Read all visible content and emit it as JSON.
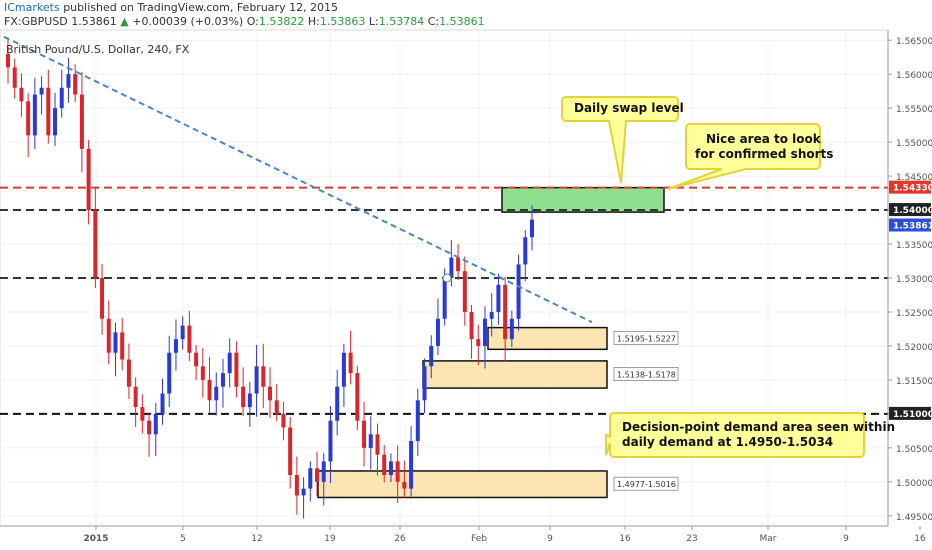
{
  "header": {
    "publisher": "ICmarkets",
    "published_text": " published on TradingView.com, February 12, 2015",
    "symbol": "FX:GBPUSD",
    "last": "1.53861",
    "change": "+0.00039 (+0.03%)",
    "open_label": "O:",
    "open": "1.53822",
    "high_label": "H:",
    "high": "1.53863",
    "low_label": "L:",
    "low": "1.53784",
    "close_label": "C:",
    "close": "1.53861",
    "up_arrow": "▲"
  },
  "chart_data": {
    "type": "candlestick",
    "title": "British Pound/U.S. Dollar, 240, FX",
    "ylim": [
      1.4935,
      1.5665
    ],
    "y_ticks": [
      "1.56500",
      "1.56000",
      "1.55500",
      "1.55000",
      "1.54500",
      "1.54000",
      "1.53500",
      "1.53000",
      "1.52500",
      "1.52000",
      "1.51500",
      "1.51000",
      "1.50500",
      "1.50000",
      "1.49500"
    ],
    "x_ticks": [
      "2015",
      "5",
      "12",
      "19",
      "26",
      "Feb",
      "9",
      "16",
      "23",
      "Mar",
      "9",
      "16"
    ],
    "price_labels": [
      {
        "text": "1.54330",
        "value": 1.5433,
        "color": "#e0392b"
      },
      {
        "text": "1.54000",
        "value": 1.54,
        "color": "#222222"
      },
      {
        "text": "1.53861",
        "value": 1.53861,
        "color": "#2b4fd8"
      },
      {
        "text": "1.51000",
        "value": 1.51,
        "color": "#222222"
      }
    ],
    "horizontal_levels": [
      {
        "value": 1.5433,
        "color": "#e0392b",
        "style": "dashed"
      },
      {
        "value": 1.54,
        "color": "#333333",
        "style": "dashed"
      },
      {
        "value": 1.53,
        "color": "#333333",
        "style": "dashed"
      },
      {
        "value": 1.51,
        "color": "#111111",
        "style": "dashed"
      }
    ],
    "zones": [
      {
        "label": "1.5195-1.5227",
        "low": 1.5195,
        "high": 1.5227,
        "color": "#fbe6b3"
      },
      {
        "label": "1.5138-1.5178",
        "low": 1.5138,
        "high": 1.5178,
        "color": "#fbe6b3"
      },
      {
        "label": "1.4977-1.5016",
        "low": 1.4977,
        "high": 1.5016,
        "color": "#fbe6b3"
      },
      {
        "label": "",
        "low": 1.5397,
        "high": 1.5433,
        "color": "#8ee08e"
      }
    ],
    "trendline": {
      "from": [
        1.5655
      ],
      "to": [
        1.5235
      ],
      "color": "#4a86c8"
    },
    "callouts": [
      {
        "text": "Daily swap level"
      },
      {
        "text": "Nice area to look\nfor confirmed shorts"
      },
      {
        "text": "Decision-point demand area seen within\ndaily demand at 1.4950-1.5034"
      }
    ],
    "candle_path": [
      1.561,
      1.558,
      1.556,
      1.551,
      1.557,
      1.558,
      1.551,
      1.555,
      1.558,
      1.56,
      1.557,
      1.549,
      1.54,
      1.53,
      1.524,
      1.519,
      1.522,
      1.518,
      1.514,
      1.511,
      1.509,
      1.507,
      1.51,
      1.513,
      1.519,
      1.521,
      1.523,
      1.519,
      1.517,
      1.515,
      1.512,
      1.514,
      1.516,
      1.519,
      1.514,
      1.511,
      1.513,
      1.517,
      1.514,
      1.512,
      1.51,
      1.508,
      1.501,
      1.498,
      1.499,
      1.502,
      1.5,
      1.503,
      1.509,
      1.514,
      1.519,
      1.516,
      1.509,
      1.505,
      1.507,
      1.504,
      1.501,
      1.503,
      1.5,
      1.499,
      1.506,
      1.512,
      1.517,
      1.52,
      1.524,
      1.53,
      1.533,
      1.531,
      1.525,
      1.521,
      1.52,
      1.524,
      1.525,
      1.529,
      1.521,
      1.524,
      1.532,
      1.536,
      1.5386
    ]
  }
}
